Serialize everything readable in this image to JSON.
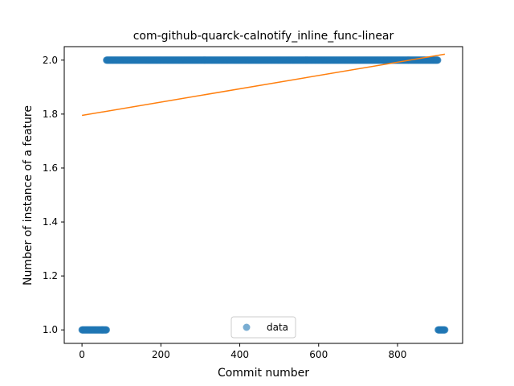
{
  "chart_data": {
    "type": "scatter",
    "title": "com-github-quarck-calnotify_inline_func-linear",
    "xlabel": "Commit number",
    "ylabel": "Number of instance of a feature",
    "xlim": [
      -45,
      965
    ],
    "ylim": [
      0.95,
      2.05
    ],
    "x_ticks": [
      0,
      200,
      400,
      600,
      800
    ],
    "y_ticks": [
      1.0,
      1.2,
      1.4,
      1.6,
      1.8,
      2.0
    ],
    "x_tick_labels": [
      "0",
      "200",
      "400",
      "600",
      "800"
    ],
    "y_tick_labels": [
      "1.0",
      "1.2",
      "1.4",
      "1.6",
      "1.8",
      "2.0"
    ],
    "grid": false,
    "legend": {
      "placement": "lower center",
      "entries": [
        "data"
      ]
    },
    "series": [
      {
        "name": "data",
        "kind": "scatter",
        "color": "#1f77b4",
        "segments": [
          {
            "x_start": 0,
            "x_end": 62,
            "y": 1.0
          },
          {
            "x_start": 62,
            "x_end": 902,
            "y": 2.0
          },
          {
            "x_start": 903,
            "x_end": 920,
            "y": 1.0
          }
        ]
      },
      {
        "name": "",
        "kind": "line",
        "color": "#ff7f0e",
        "points": [
          [
            0,
            1.795
          ],
          [
            920,
            2.022
          ]
        ]
      }
    ]
  }
}
